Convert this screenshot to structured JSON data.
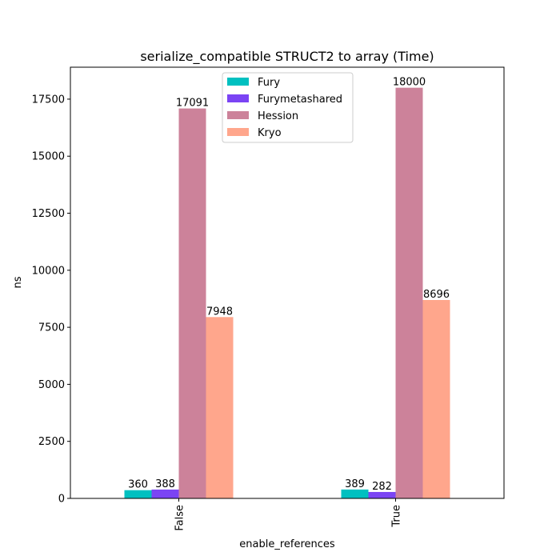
{
  "chart_data": {
    "type": "bar",
    "title": "serialize_compatible STRUCT2 to array (Time)",
    "xlabel": "enable_references",
    "ylabel": "ns",
    "categories": [
      "False",
      "True"
    ],
    "ylim": [
      0,
      18900
    ],
    "yticks": [
      0,
      2500,
      5000,
      7500,
      10000,
      12500,
      15000,
      17500
    ],
    "ytick_labels": [
      "0",
      "2500",
      "5000",
      "7500",
      "10000",
      "12500",
      "15000",
      "17500"
    ],
    "grid": false,
    "legend_position": "top-center",
    "series": [
      {
        "name": "Fury",
        "color": "#00c0c0",
        "values": [
          360,
          389
        ],
        "labels": [
          "360",
          "389"
        ]
      },
      {
        "name": "Furymetashared",
        "color": "#7b44f4",
        "values": [
          388,
          282
        ],
        "labels": [
          "388",
          "282"
        ]
      },
      {
        "name": "Hession",
        "color": "#cc829a",
        "values": [
          17091,
          18000
        ],
        "labels": [
          "17091",
          "18000"
        ]
      },
      {
        "name": "Kryo",
        "color": "#ffa68c",
        "values": [
          7948,
          8696
        ],
        "labels": [
          "7948",
          "8696"
        ]
      }
    ]
  }
}
